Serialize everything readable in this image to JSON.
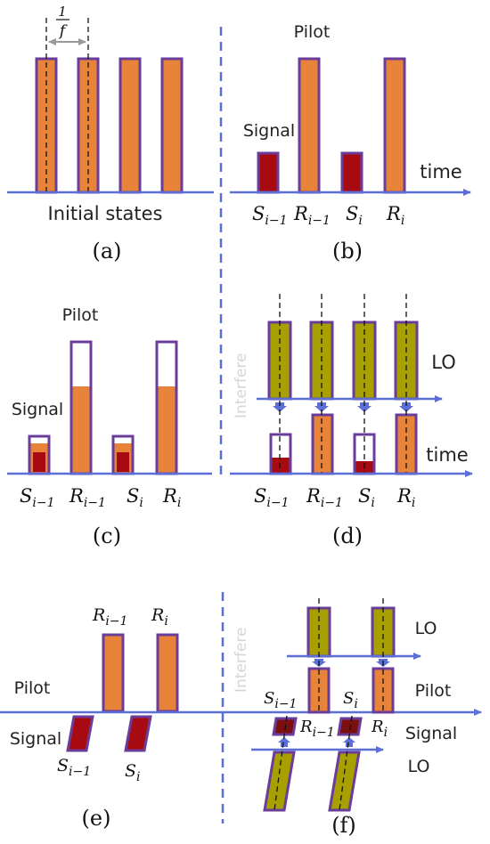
{
  "colors": {
    "pulse_fill": "#e8843a",
    "pulse_border": "#6a3d9a",
    "signal_fill": "#a80a12",
    "lo_fill": "#a8a000",
    "axis": "#5b6fd6",
    "divider": "#5b6fd6"
  },
  "panel_a": {
    "period_numerator": "1",
    "period_denominator": "f",
    "axis_label": "Initial  states",
    "caption": "(a)"
  },
  "panel_b": {
    "pilot_label": "Pilot",
    "signal_label": "Signal",
    "time_label": "time",
    "caption": "(b)",
    "labels": [
      {
        "base": "S",
        "sub": "i−1"
      },
      {
        "base": "R",
        "sub": "i−1"
      },
      {
        "base": "S",
        "sub": "i"
      },
      {
        "base": "R",
        "sub": "i"
      }
    ]
  },
  "panel_c": {
    "pilot_label": "Pilot",
    "signal_label": "Signal",
    "caption": "(c)",
    "labels": [
      {
        "base": "S",
        "sub": "i−1"
      },
      {
        "base": "R",
        "sub": "i−1"
      },
      {
        "base": "S",
        "sub": "i"
      },
      {
        "base": "R",
        "sub": "i"
      }
    ]
  },
  "panel_d": {
    "interfere_label": "Interfere",
    "lo_label": "LO",
    "time_label": "time",
    "caption": "(d)",
    "labels": [
      {
        "base": "S",
        "sub": "i−1"
      },
      {
        "base": "R",
        "sub": "i−1"
      },
      {
        "base": "S",
        "sub": "i"
      },
      {
        "base": "R",
        "sub": "i"
      }
    ]
  },
  "panel_e": {
    "pilot_label": "Pilot",
    "signal_label": "Signal",
    "caption": "(e)",
    "pilot_labels": [
      {
        "base": "R",
        "sub": "i−1"
      },
      {
        "base": "R",
        "sub": "i"
      }
    ],
    "signal_labels": [
      {
        "base": "S",
        "sub": "i−1"
      },
      {
        "base": "S",
        "sub": "i"
      }
    ]
  },
  "panel_f": {
    "interfere_label": "Interfere",
    "lo_top_label": "LO",
    "pilot_label": "Pilot",
    "signal_label": "Signal",
    "lo_bottom_label": "LO",
    "caption": "(f)",
    "labels": [
      {
        "base": "S",
        "sub": "i−1"
      },
      {
        "base": "S",
        "sub": "i"
      },
      {
        "base": "R",
        "sub": "i−1"
      },
      {
        "base": "R",
        "sub": "i"
      }
    ]
  }
}
